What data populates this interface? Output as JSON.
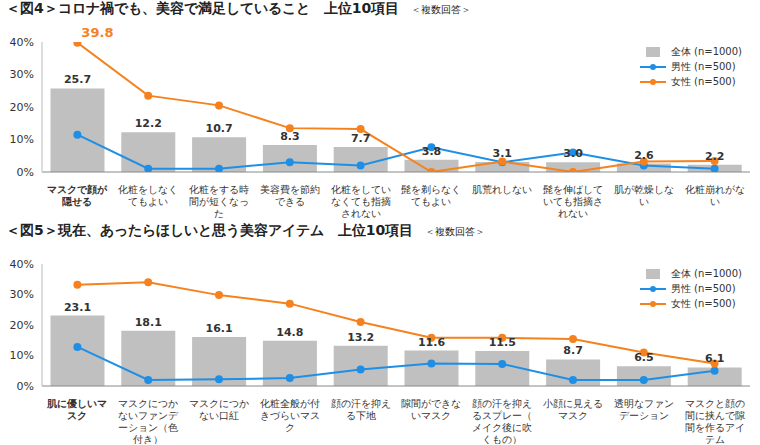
{
  "chart_data": [
    {
      "type": "bar",
      "title": "＜図4＞コロナ禍でも、美容で満足していること　上位10項目",
      "subtitle": "＜複数回答＞",
      "categories": [
        "マスクで顔が隠せる",
        "化粧をしなくてもよい",
        "化粧をする時間が短くなった",
        "美容費を節約できる",
        "化粧をしていなくても指摘されない",
        "髭を剃らなくてもよい",
        "肌荒れしない",
        "髭を伸ばしていても指摘されない",
        "肌が乾燥しない",
        "化粧崩れがない"
      ],
      "series": [
        {
          "name": "全体 (n=1000)",
          "type": "bar",
          "color": "#c0c0c0",
          "values": [
            25.7,
            12.2,
            10.7,
            8.3,
            7.7,
            3.8,
            3.1,
            3.0,
            2.6,
            2.2
          ],
          "value_labels": [
            "25.7",
            "12.2",
            "10.7",
            "8.3",
            "7.7",
            "3.8",
            "3.1",
            "3.0",
            "2.6",
            "2.2"
          ]
        },
        {
          "name": "男性 (n=500)",
          "type": "line",
          "color": "#1f8fe5",
          "marker": "circle",
          "values": [
            11.5,
            1.0,
            1.0,
            3.0,
            2.0,
            7.6,
            3.0,
            6.0,
            2.0,
            1.0
          ]
        },
        {
          "name": "女性 (n=500)",
          "type": "line",
          "color": "#f5821f",
          "marker": "circle",
          "values": [
            39.8,
            23.5,
            20.5,
            13.5,
            13.2,
            0,
            3.2,
            0,
            3.2,
            3.4
          ],
          "value_labels": [
            "39.8",
            null,
            null,
            null,
            null,
            null,
            null,
            null,
            null,
            null
          ]
        }
      ],
      "ylim": [
        0,
        40
      ],
      "yticks": [
        {
          "value": 0,
          "label": "0%"
        },
        {
          "value": 10,
          "label": "10%"
        },
        {
          "value": 20,
          "label": "20%"
        },
        {
          "value": 30,
          "label": "30%"
        },
        {
          "value": 40,
          "label": "40%"
        }
      ],
      "grid": false,
      "legend": "upper right",
      "data_labels": true
    },
    {
      "type": "bar",
      "title": "＜図5＞現在、あったらほしいと思う美容アイテム　上位10項目",
      "subtitle": "＜複数回答＞",
      "categories": [
        "肌に優しいマスク",
        "マスクにつかないファンデーション（色付き）",
        "マスクにつかない口紅",
        "化粧全般が付きづらいマスク",
        "顔の汗を抑える下地",
        "隙間ができないマスク",
        "顔の汗を抑えるスプレー（メイク後に吹くもの）",
        "小顔に見えるマスク",
        "透明なファンデーション",
        "マスクと顔の間に挟んで隙間を作るアイテム"
      ],
      "series": [
        {
          "name": "全体 (n=1000)",
          "type": "bar",
          "color": "#c0c0c0",
          "values": [
            23.1,
            18.1,
            16.1,
            14.8,
            13.2,
            11.6,
            11.5,
            8.7,
            6.5,
            6.1
          ],
          "value_labels": [
            "23.1",
            "18.1",
            "16.1",
            "14.8",
            "13.2",
            "11.6",
            "11.5",
            "8.7",
            "6.5",
            "6.1"
          ]
        },
        {
          "name": "男性 (n=500)",
          "type": "line",
          "color": "#1f8fe5",
          "marker": "circle",
          "values": [
            12.8,
            2.0,
            2.2,
            2.6,
            5.4,
            7.4,
            7.2,
            2.0,
            2.0,
            5.0
          ]
        },
        {
          "name": "女性 (n=500)",
          "type": "line",
          "color": "#f5821f",
          "marker": "circle",
          "values": [
            33.2,
            34.0,
            29.8,
            27.0,
            21.0,
            15.8,
            15.8,
            15.4,
            11.0,
            7.4
          ]
        }
      ],
      "ylim": [
        0,
        40
      ],
      "yticks": [
        {
          "value": 0,
          "label": "0%"
        },
        {
          "value": 10,
          "label": "10%"
        },
        {
          "value": 20,
          "label": "20%"
        },
        {
          "value": 30,
          "label": "30%"
        },
        {
          "value": 40,
          "label": "40%"
        }
      ],
      "grid": false,
      "legend": "upper right",
      "data_labels": true
    }
  ]
}
